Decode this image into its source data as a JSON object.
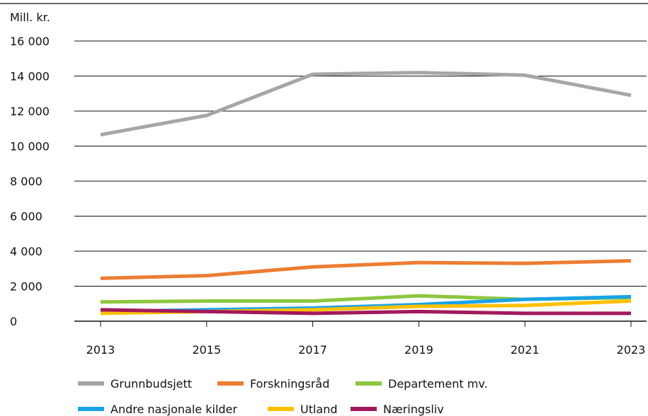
{
  "chart_data": {
    "type": "line",
    "unit_label": "Mill. kr.",
    "title": "",
    "xlabel": "",
    "ylabel": "Mill. kr.",
    "x": [
      2013,
      2015,
      2017,
      2019,
      2021,
      2023
    ],
    "x_tick_labels": [
      "2013",
      "2015",
      "2017",
      "2019",
      "2021",
      "2023"
    ],
    "y_ticks": [
      0,
      2000,
      4000,
      6000,
      8000,
      10000,
      12000,
      14000,
      16000
    ],
    "y_tick_labels": [
      "0",
      "2 000",
      "4 000",
      "6 000",
      "8 000",
      "10 000",
      "12 000",
      "14 000",
      "16 000"
    ],
    "ylim": [
      0,
      16000
    ],
    "grid": "horizontal",
    "legend_position": "bottom",
    "series": [
      {
        "name": "Grunnbudsjett",
        "color": "#a6a6a6",
        "values": [
          10650,
          11750,
          14100,
          14200,
          14050,
          12900
        ]
      },
      {
        "name": "Forskningsråd",
        "color": "#ed7d31",
        "values": [
          2450,
          2600,
          3100,
          3350,
          3300,
          3450
        ]
      },
      {
        "name": "Departement mv.",
        "color": "#8dc63f",
        "values": [
          1100,
          1150,
          1150,
          1450,
          1250,
          1350
        ]
      },
      {
        "name": "Andre nasjonale kilder",
        "color": "#1aa3e8",
        "values": [
          550,
          650,
          750,
          950,
          1250,
          1400
        ]
      },
      {
        "name": "Utland",
        "color": "#ffc000",
        "values": [
          450,
          550,
          650,
          850,
          900,
          1150
        ]
      },
      {
        "name": "Næringsliv",
        "color": "#a2195b",
        "values": [
          650,
          550,
          450,
          550,
          450,
          450
        ]
      }
    ]
  }
}
